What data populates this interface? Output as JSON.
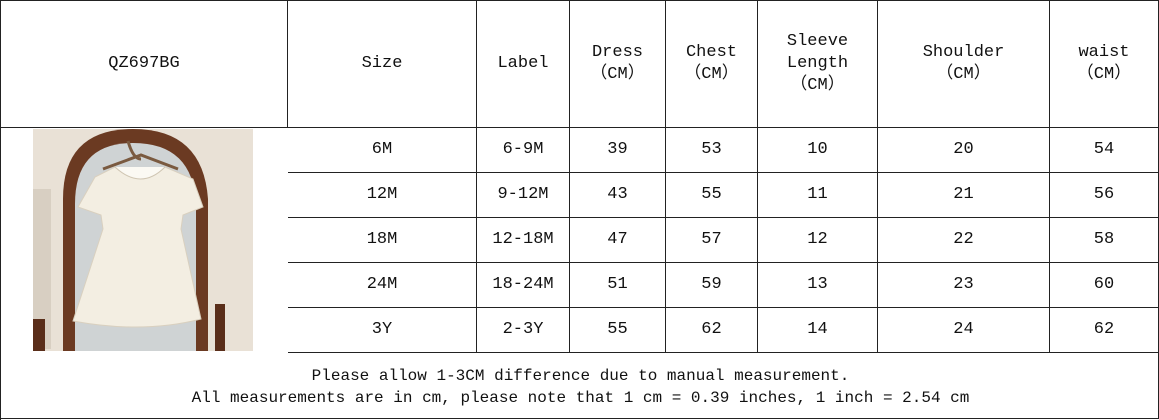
{
  "header": {
    "cells": [
      [
        "QZ697BG"
      ],
      [
        "Size"
      ],
      [
        "Label"
      ],
      [
        "Dress",
        "（CM）"
      ],
      [
        "Chest",
        "（CM）"
      ],
      [
        "Sleeve",
        "Length",
        "（CM）"
      ],
      [
        "Shoulder",
        "（CM）"
      ],
      [
        "waist",
        "（CM）"
      ]
    ]
  },
  "table": {
    "rows": [
      [
        "6M",
        "6-9M",
        "39",
        "53",
        "10",
        "20",
        "54"
      ],
      [
        "12M",
        "9-12M",
        "43",
        "55",
        "11",
        "21",
        "56"
      ],
      [
        "18M",
        "12-18M",
        "47",
        "57",
        "12",
        "22",
        "58"
      ],
      [
        "24M",
        "18-24M",
        "51",
        "59",
        "13",
        "23",
        "60"
      ],
      [
        "3Y",
        "2-3Y",
        "55",
        "62",
        "14",
        "24",
        "62"
      ]
    ]
  },
  "footer": {
    "notes": [
      "Please allow 1-3CM difference due to manual measurement.",
      "All measurements are in cm, please note that 1 cm = 0.39 inches, 1 inch = 2.54 cm"
    ]
  }
}
